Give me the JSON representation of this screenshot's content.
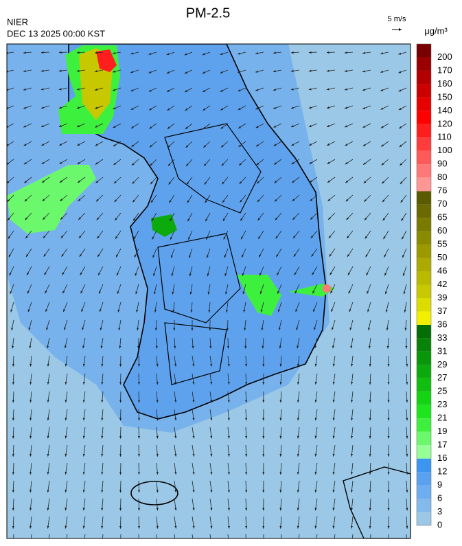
{
  "header": {
    "title": "PM-2.5",
    "agency": "NIER",
    "datetime": "DEC 13 2025 00:00 KST",
    "wind_scale": "5 m/s"
  },
  "colorbar": {
    "unit": "μg/m³",
    "levels": [
      0,
      3,
      6,
      9,
      12,
      16,
      17,
      19,
      21,
      23,
      25,
      27,
      29,
      31,
      33,
      36,
      37,
      39,
      42,
      46,
      50,
      55,
      60,
      65,
      70,
      76,
      80,
      90,
      100,
      110,
      120,
      140,
      150,
      160,
      170,
      200
    ],
    "colors": [
      "#9ac8e6",
      "#82baec",
      "#6eaef0",
      "#5aa2f0",
      "#3c96f0",
      "#96ff96",
      "#6cf86c",
      "#3ef03e",
      "#1ee61e",
      "#14d214",
      "#10be10",
      "#0caa0c",
      "#0a960a",
      "#088208",
      "#066e06",
      "#f0f000",
      "#dcdc00",
      "#c8c800",
      "#b9b900",
      "#aaaa00",
      "#9a9a00",
      "#8a8a00",
      "#7a7a00",
      "#6a6a00",
      "#5a5a00",
      "#ff9696",
      "#ff7878",
      "#ff5a5a",
      "#ff3c3c",
      "#ff1e1e",
      "#ff0000",
      "#e60000",
      "#cc0000",
      "#b40000",
      "#9a0000",
      "#780000"
    ]
  }
}
